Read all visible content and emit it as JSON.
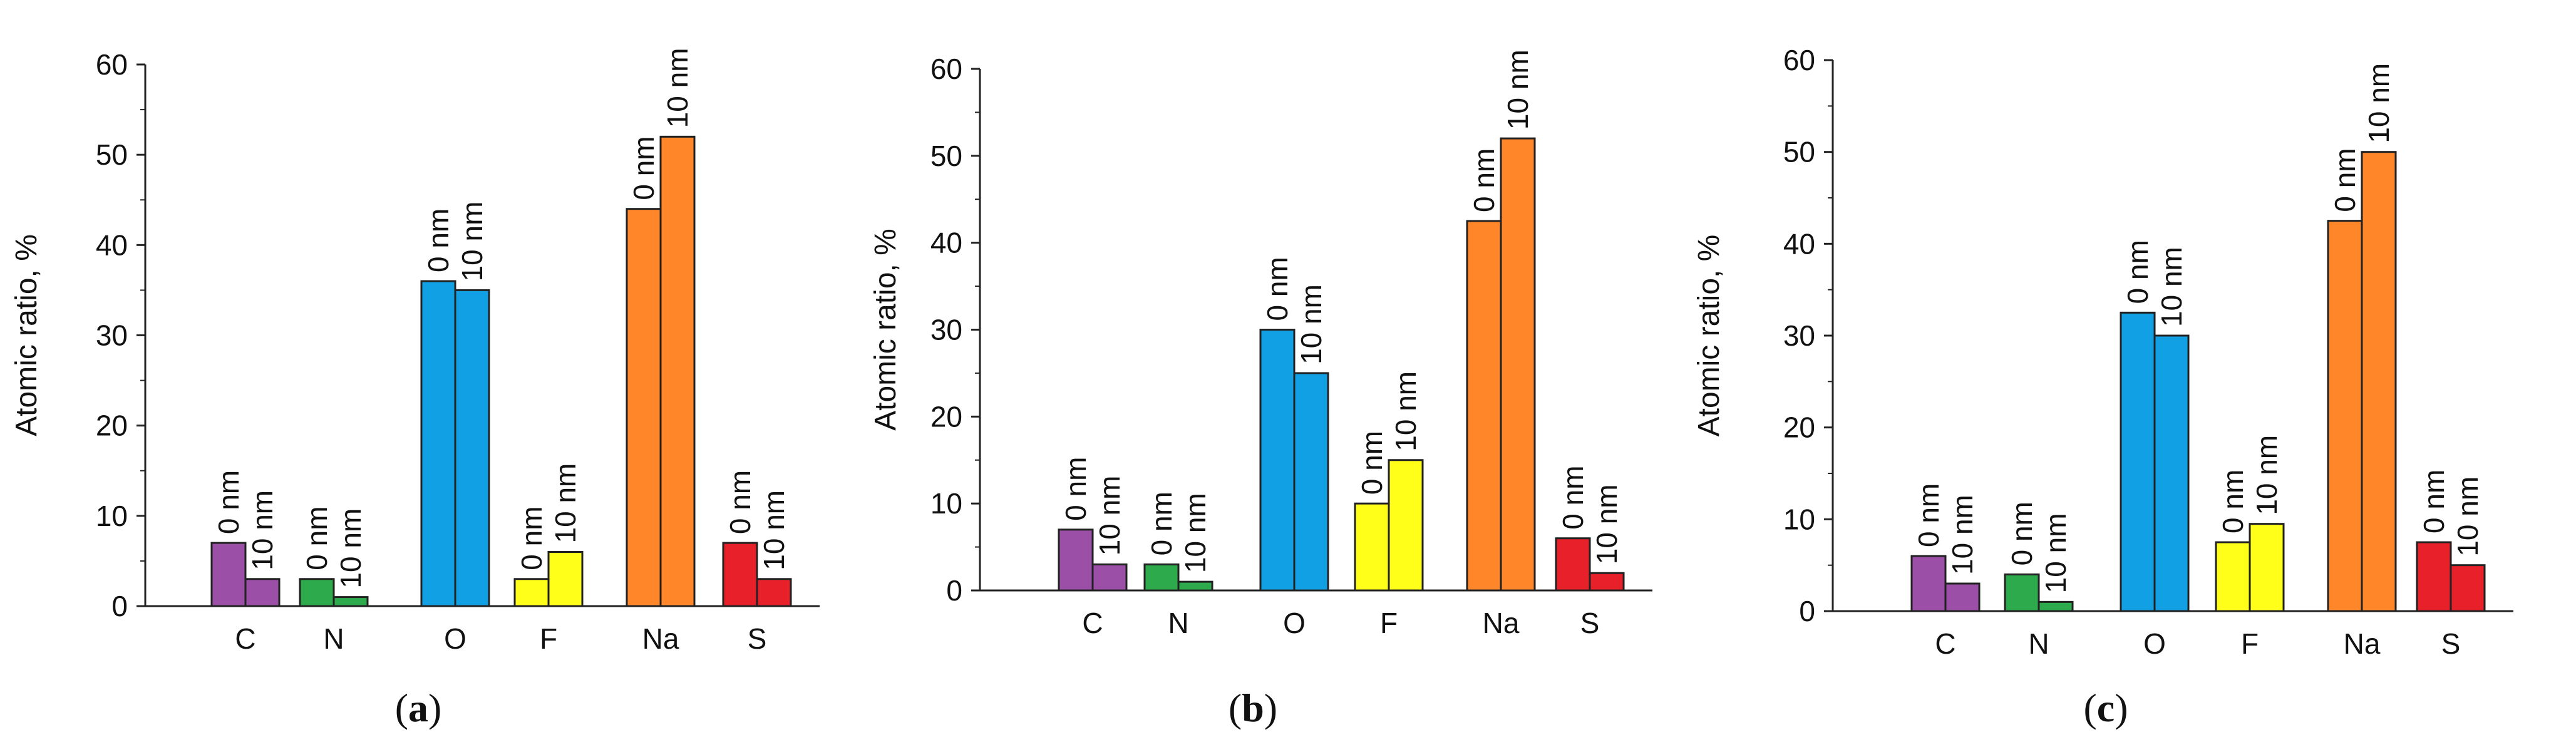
{
  "colors": {
    "C": "#9B4FA6",
    "N": "#2DAA4B",
    "O": "#12A0E4",
    "F": "#FFFF1A",
    "Na": "#FF8629",
    "S": "#E8202A"
  },
  "panel_labels": [
    {
      "open": "(",
      "letter": "a",
      "close": ")"
    },
    {
      "open": "(",
      "letter": "b",
      "close": ")"
    },
    {
      "open": "(",
      "letter": "c",
      "close": ")"
    }
  ],
  "chart_data": [
    {
      "type": "bar",
      "title": "",
      "ylabel": "Atomic ratio, %",
      "xlabel": "",
      "ylim": [
        0,
        60
      ],
      "yticks": [
        0,
        10,
        20,
        30,
        40,
        50,
        60
      ],
      "categories": [
        "C",
        "N",
        "O",
        "F",
        "Na",
        "S"
      ],
      "series": [
        {
          "name": "0 nm",
          "values": [
            7,
            3,
            36,
            3,
            44,
            7
          ]
        },
        {
          "name": "10 nm",
          "values": [
            3,
            1,
            35,
            6,
            52,
            3
          ]
        }
      ]
    },
    {
      "type": "bar",
      "title": "",
      "ylabel": "Atomic ratio, %",
      "xlabel": "",
      "ylim": [
        0,
        60
      ],
      "yticks": [
        0,
        10,
        20,
        30,
        40,
        50,
        60
      ],
      "categories": [
        "C",
        "N",
        "O",
        "F",
        "Na",
        "S"
      ],
      "series": [
        {
          "name": "0 nm",
          "values": [
            7,
            3,
            30,
            10,
            42.5,
            6
          ]
        },
        {
          "name": "10 nm",
          "values": [
            3,
            1,
            25,
            15,
            52,
            2
          ]
        }
      ]
    },
    {
      "type": "bar",
      "title": "",
      "ylabel": "Atomic ratio, %",
      "xlabel": "",
      "ylim": [
        0,
        60
      ],
      "yticks": [
        0,
        10,
        20,
        30,
        40,
        50,
        60
      ],
      "categories": [
        "C",
        "N",
        "O",
        "F",
        "Na",
        "S"
      ],
      "series": [
        {
          "name": "0 nm",
          "values": [
            6,
            4,
            32.5,
            7.5,
            42.5,
            7.5
          ]
        },
        {
          "name": "10 nm",
          "values": [
            3,
            1,
            30,
            9.5,
            50,
            5
          ]
        }
      ]
    }
  ]
}
